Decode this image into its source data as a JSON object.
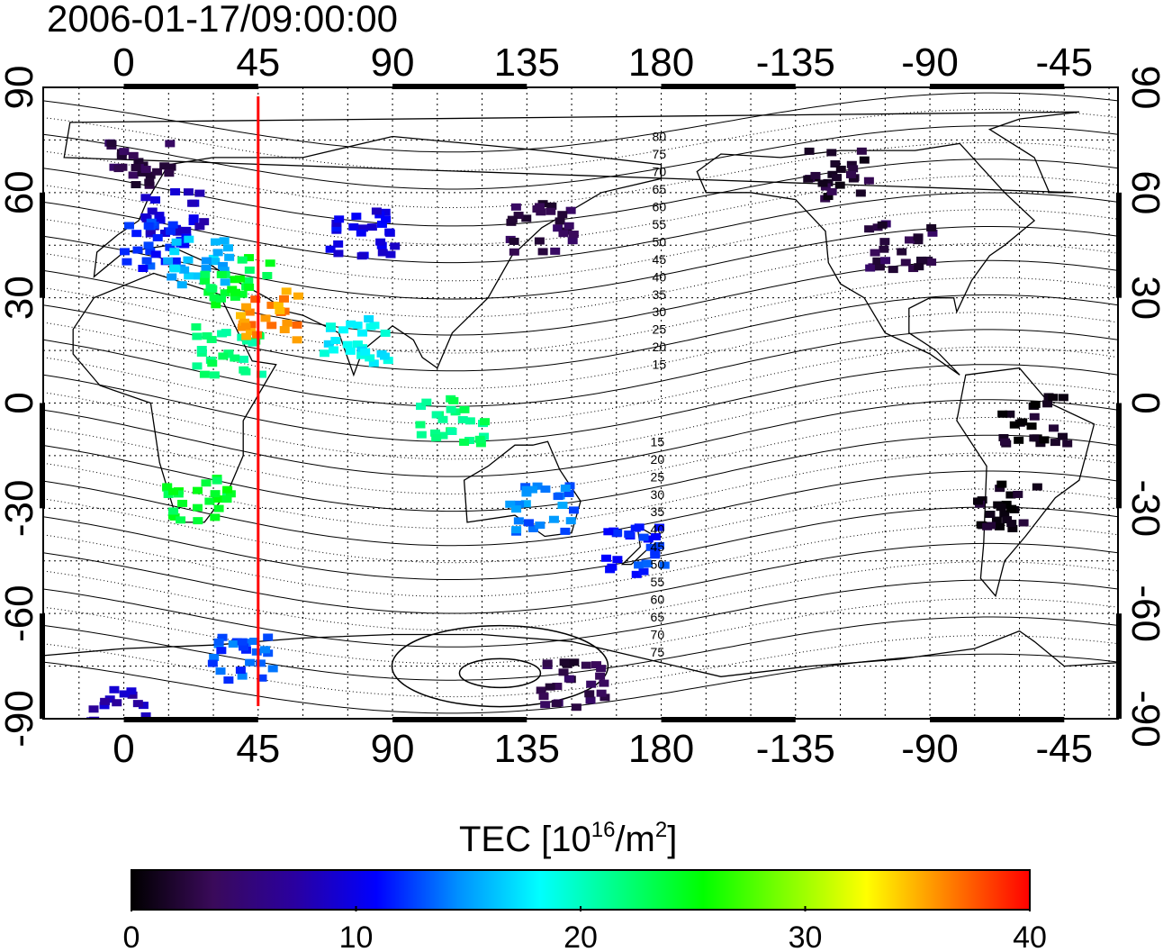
{
  "timestamp": "2006-01-17/09:00:00",
  "map": {
    "x_ticks": [
      "0",
      "45",
      "90",
      "135",
      "180",
      "-135",
      "-90",
      "-45"
    ],
    "y_ticks": [
      "90",
      "60",
      "30",
      "0",
      "-30",
      "-60",
      "-90"
    ],
    "tick_longitudes": [
      0,
      45,
      90,
      135,
      180,
      225,
      270,
      315
    ],
    "tick_latitudes": [
      90,
      60,
      30,
      0,
      -30,
      -60,
      -90
    ],
    "lon_range": [
      -27,
      333
    ],
    "lat_range": [
      -90,
      90
    ],
    "meridian_marker_lon": 45,
    "meridian_marker_color": "#ff0000",
    "contour_labels_north": [
      "80",
      "75",
      "70",
      "65",
      "60",
      "55",
      "50",
      "45",
      "40",
      "35",
      "30",
      "25",
      "20",
      "15"
    ],
    "contour_labels_south": [
      "15",
      "20",
      "25",
      "30",
      "35",
      "40",
      "45",
      "50",
      "55",
      "60",
      "65",
      "70",
      "75"
    ],
    "tec_patches": [
      {
        "lon": 5,
        "lat": 68,
        "value": 3
      },
      {
        "lon": 18,
        "lat": 55,
        "value": 9
      },
      {
        "lon": 10,
        "lat": 45,
        "value": 12
      },
      {
        "lon": 25,
        "lat": 40,
        "value": 16
      },
      {
        "lon": 38,
        "lat": 35,
        "value": 24
      },
      {
        "lon": 35,
        "lat": 15,
        "value": 22
      },
      {
        "lon": 48,
        "lat": 25,
        "value": 36
      },
      {
        "lon": 80,
        "lat": 48,
        "value": 10
      },
      {
        "lon": 78,
        "lat": 18,
        "value": 18
      },
      {
        "lon": 110,
        "lat": -5,
        "value": 22
      },
      {
        "lon": 140,
        "lat": 50,
        "value": 3
      },
      {
        "lon": 140,
        "lat": -30,
        "value": 14
      },
      {
        "lon": 172,
        "lat": -42,
        "value": 12
      },
      {
        "lon": 25,
        "lat": -28,
        "value": 24
      },
      {
        "lon": -100,
        "lat": 45,
        "value": 3
      },
      {
        "lon": -120,
        "lat": 65,
        "value": 2
      },
      {
        "lon": -65,
        "lat": -30,
        "value": 1
      },
      {
        "lon": -55,
        "lat": -5,
        "value": 1
      },
      {
        "lon": 40,
        "lat": -72,
        "value": 13
      },
      {
        "lon": 150,
        "lat": -80,
        "value": 3
      },
      {
        "lon": 0,
        "lat": -88,
        "value": 8
      }
    ]
  },
  "colorbar": {
    "title_prefix": "TEC  [10",
    "title_exp1": "16",
    "title_mid": "/m",
    "title_exp2": "2",
    "title_suffix": "]",
    "tick_labels": [
      "0",
      "10",
      "20",
      "30",
      "40"
    ],
    "min": 0,
    "max": 40,
    "colors": [
      "#000000",
      "#3a0a5a",
      "#2a00a0",
      "#0000ff",
      "#0090ff",
      "#00ffff",
      "#00ff80",
      "#00ff00",
      "#80ff00",
      "#ffff00",
      "#ff8000",
      "#ff0000"
    ]
  }
}
